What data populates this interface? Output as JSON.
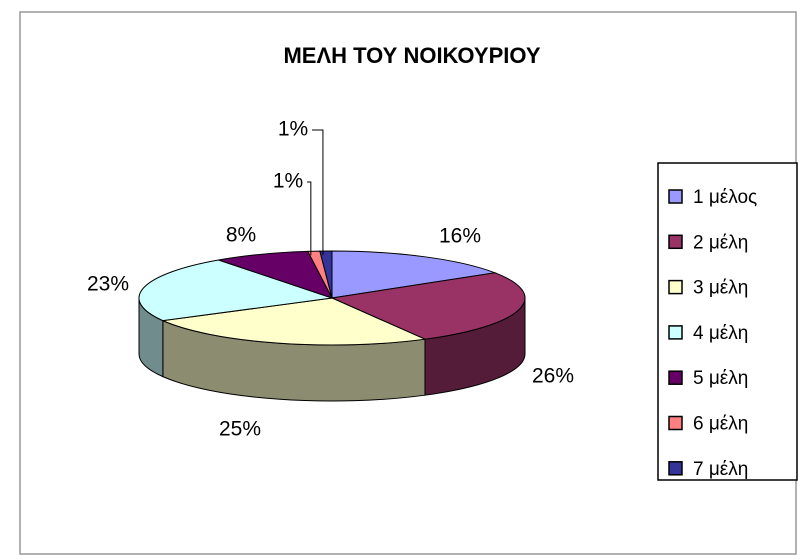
{
  "chart_data": {
    "type": "pie3d",
    "title": "ΜΕΛΗ ΤΟΥ ΝΟΙΚΟΥΡΙΟΥ",
    "categories": [
      "1 μέλος",
      "2 μέλη",
      "3 μέλη",
      "4 μέλη",
      "5 μέλη",
      "6 μέλη",
      "7 μέλη"
    ],
    "values": [
      16,
      26,
      25,
      23,
      8,
      1,
      1
    ],
    "value_labels": [
      "16%",
      "26%",
      "25%",
      "23%",
      "8%",
      "1%",
      "1%"
    ],
    "colors": [
      "#9999ff",
      "#993366",
      "#ffffcc",
      "#ccffff",
      "#660066",
      "#ff8080",
      "#333399"
    ],
    "legend": "right"
  }
}
